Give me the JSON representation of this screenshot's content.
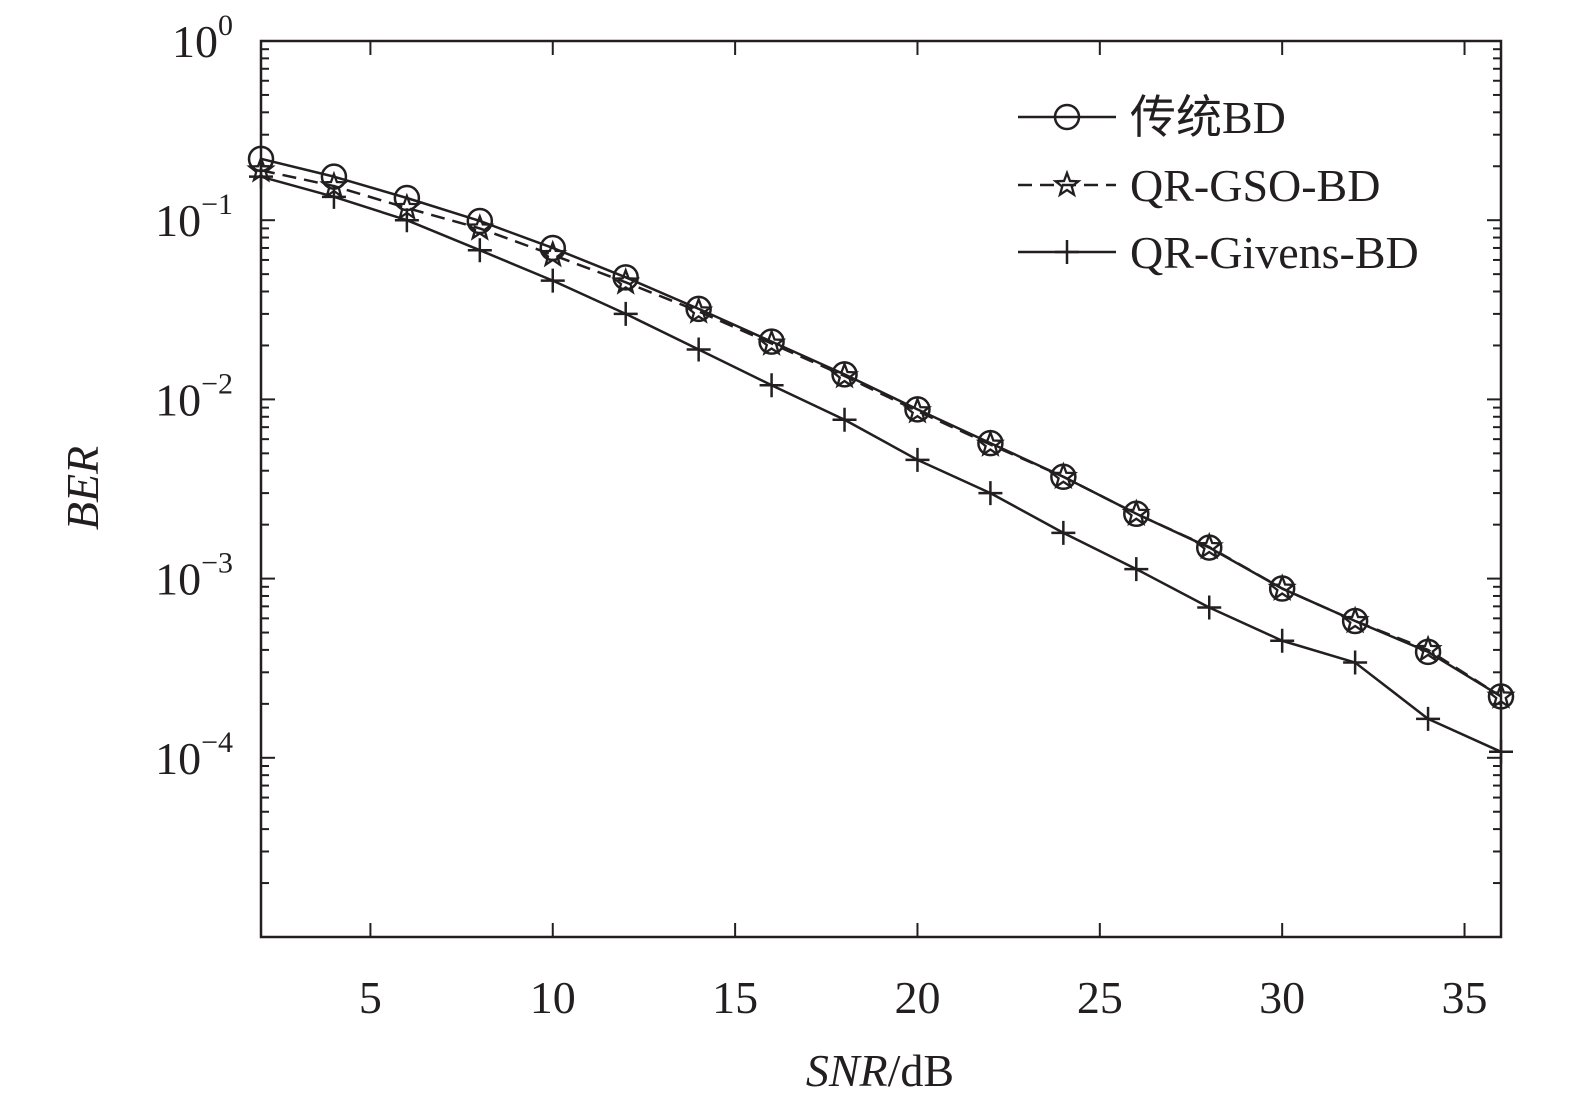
{
  "chart_data": {
    "type": "line",
    "xlabel_italic": "SNR",
    "xlabel_unit": "/dB",
    "ylabel": "BER",
    "xlim": [
      2,
      36
    ],
    "ylim": [
      1e-05,
      1
    ],
    "yscale": "log",
    "grid": false,
    "legend_position": "top-right",
    "x_ticks": [
      5,
      10,
      15,
      20,
      25,
      30,
      35
    ],
    "y_ticks": [
      {
        "value": 1,
        "base": "10",
        "exp": "0"
      },
      {
        "value": 0.1,
        "base": "10",
        "exp": "−1"
      },
      {
        "value": 0.01,
        "base": "10",
        "exp": "−2"
      },
      {
        "value": 0.001,
        "base": "10",
        "exp": "−3"
      },
      {
        "value": 0.0001,
        "base": "10",
        "exp": "−4"
      }
    ],
    "x": [
      2,
      4,
      6,
      8,
      10,
      12,
      14,
      16,
      18,
      20,
      22,
      24,
      26,
      28,
      30,
      32,
      34,
      36
    ],
    "series": [
      {
        "name": "传统BD",
        "marker": "circle",
        "line": "solid",
        "values": [
          0.22,
          0.175,
          0.133,
          0.099,
          0.07,
          0.048,
          0.032,
          0.021,
          0.0138,
          0.0088,
          0.0057,
          0.0037,
          0.0023,
          0.00149,
          0.00088,
          0.00058,
          0.00039,
          0.00022
        ]
      },
      {
        "name": "QR-GSO-BD",
        "marker": "star",
        "line": "dashed",
        "values": [
          0.19,
          0.155,
          0.117,
          0.09,
          0.064,
          0.045,
          0.031,
          0.0205,
          0.0135,
          0.0086,
          0.0056,
          0.0037,
          0.0023,
          0.0015,
          0.00088,
          0.00058,
          0.0004,
          0.00022
        ]
      },
      {
        "name": "QR-Givens-BD",
        "marker": "plus",
        "line": "solid",
        "values": [
          0.175,
          0.135,
          0.1,
          0.068,
          0.046,
          0.03,
          0.019,
          0.012,
          0.0077,
          0.0046,
          0.003,
          0.0018,
          0.00113,
          0.00069,
          0.00045,
          0.00034,
          0.000165,
          0.000108
        ]
      }
    ],
    "colors": {
      "ink": "#231f20",
      "background": "#ffffff"
    }
  }
}
